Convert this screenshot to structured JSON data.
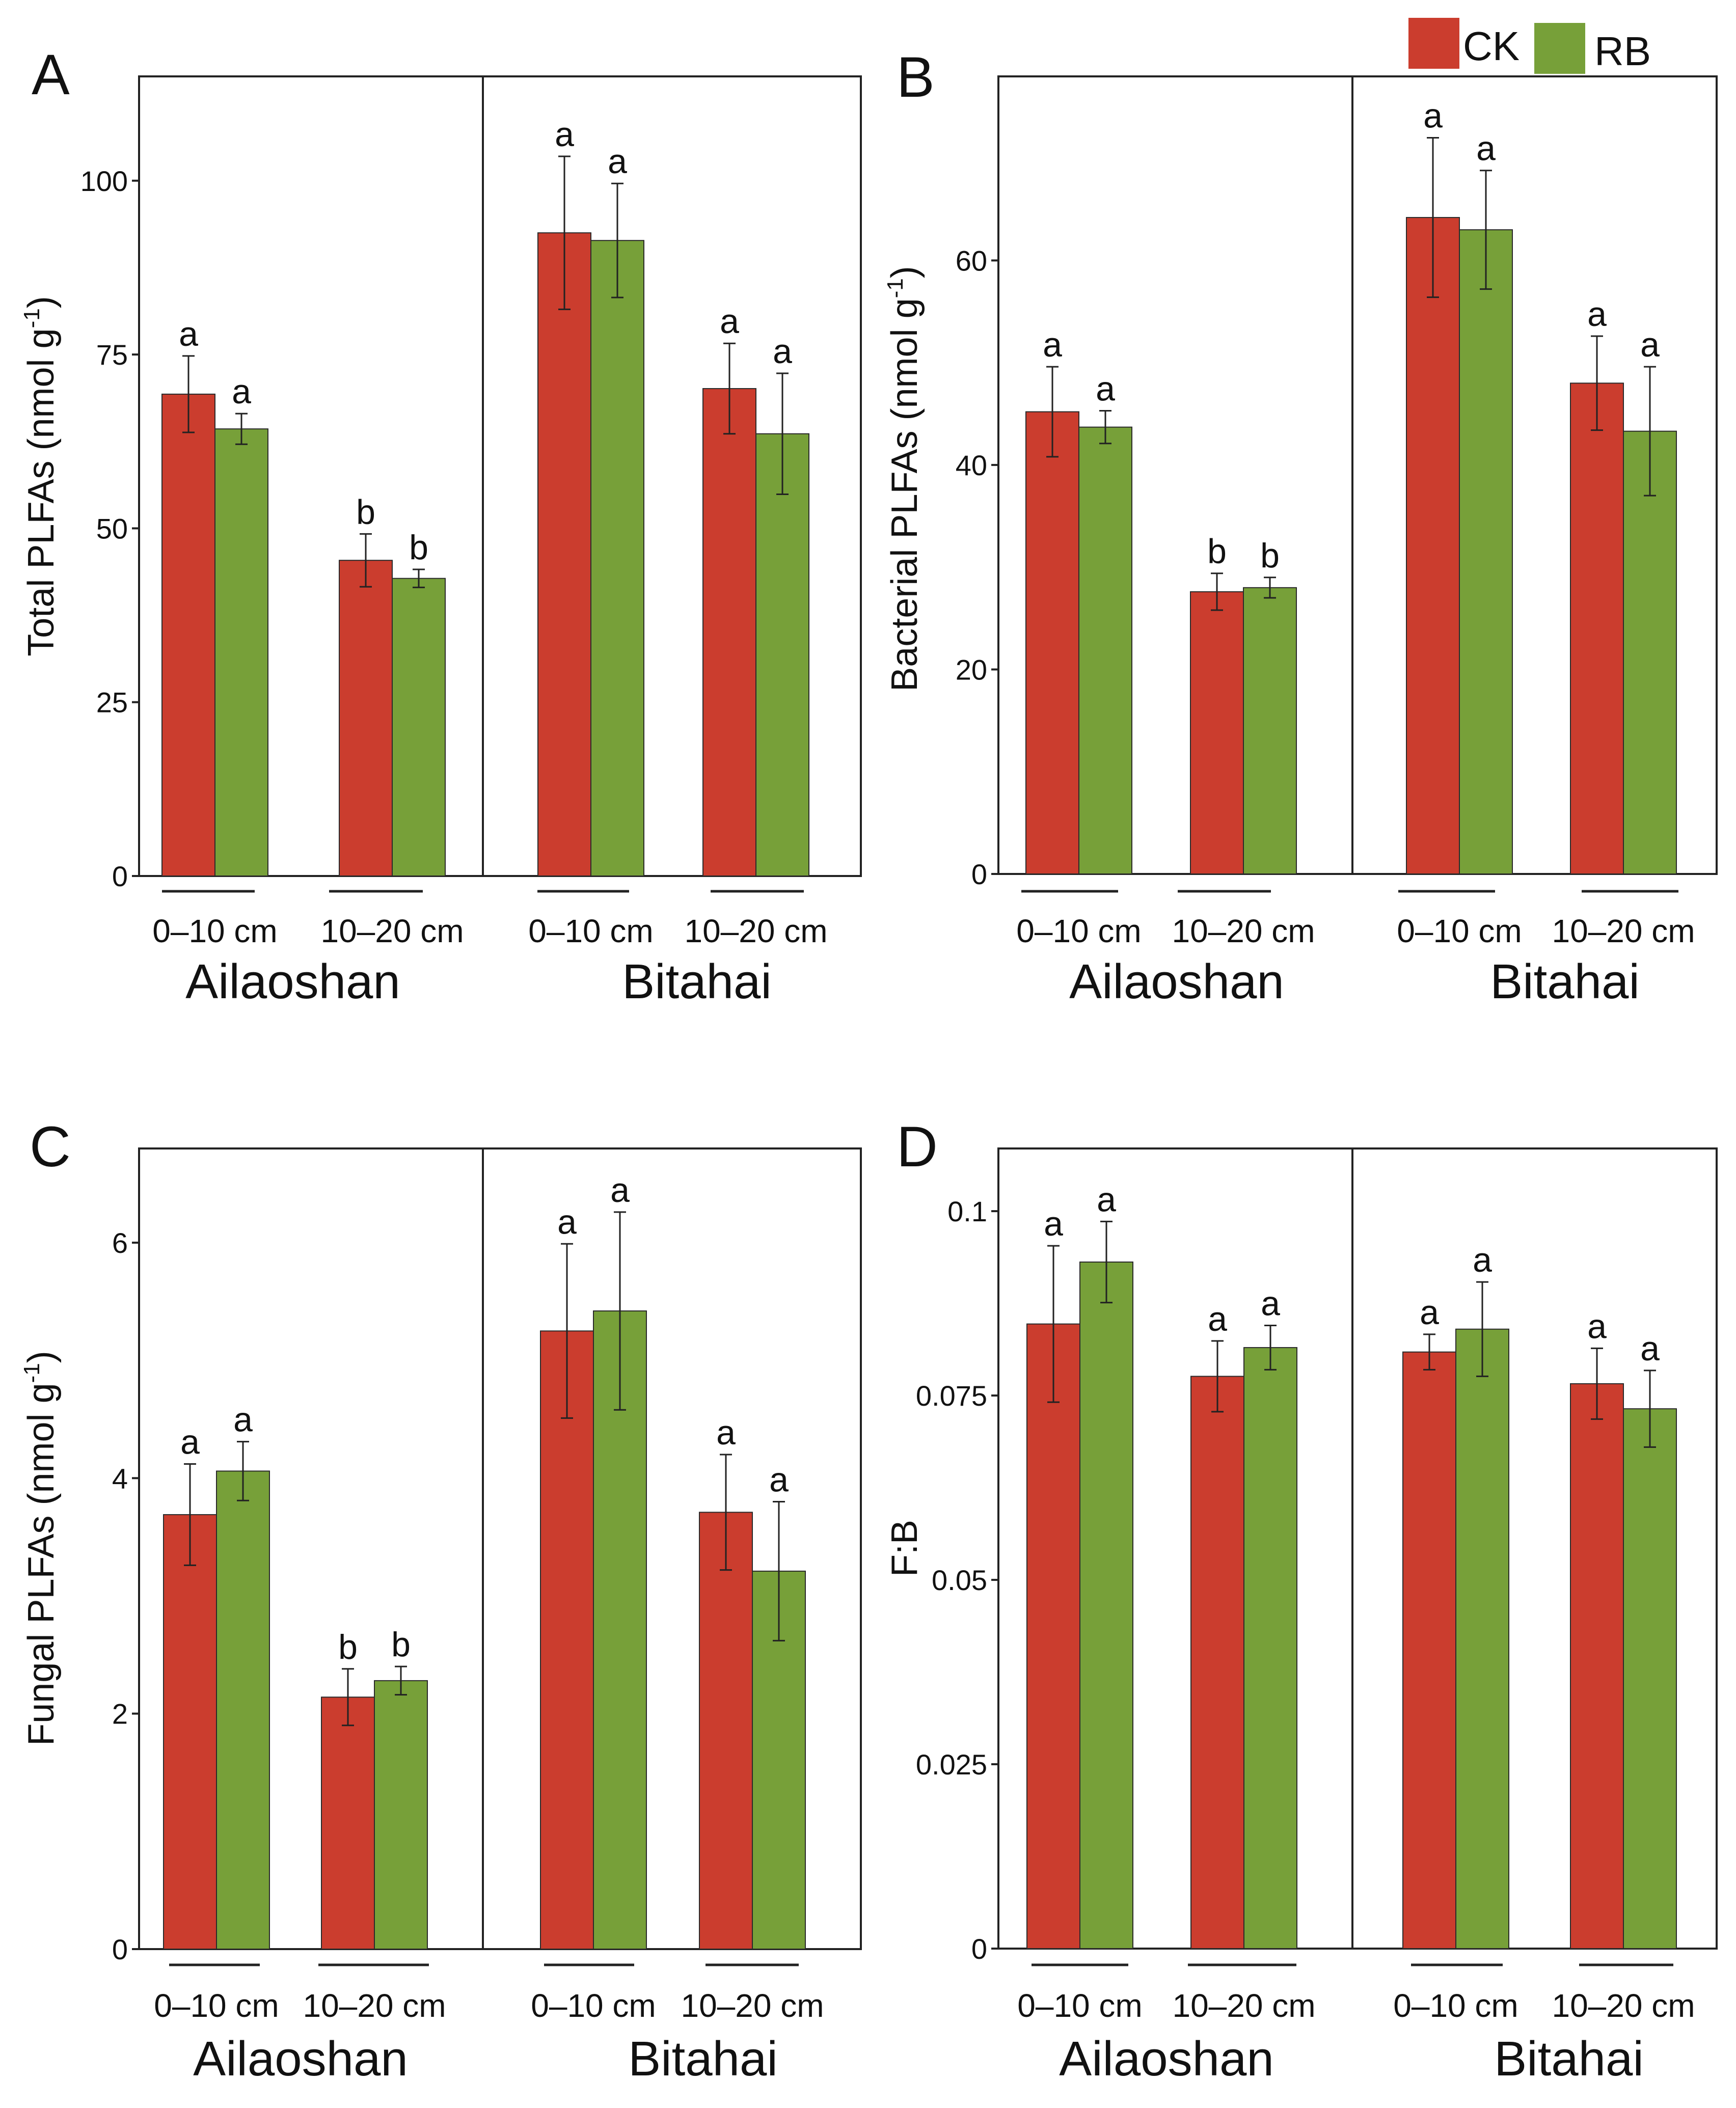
{
  "legend": {
    "items": [
      {
        "label": "CK",
        "color": "#cb3d2e"
      },
      {
        "label": "RB",
        "color": "#77a039"
      }
    ]
  },
  "chart_data": [
    {
      "type": "bar",
      "panel": "A",
      "ylabel": "Total  PLFAs  (nmol g-1)",
      "ylabel_main": "Total  PLFAs  (nmol g",
      "ylabel_sup": "-1",
      "ylabel_end": ")",
      "ylim": [
        0,
        115
      ],
      "yticks": [
        0,
        25,
        50,
        75,
        100
      ],
      "ytick_labels": [
        "0",
        "25",
        "50",
        "75",
        "100"
      ],
      "sites": [
        "Ailaoshan",
        "Bitahai"
      ],
      "depths": [
        "0–10 cm",
        "10–20 cm"
      ],
      "series": [
        {
          "name": "CK",
          "values": [
            69.3,
            45.4,
            92.5,
            70.1
          ],
          "errors": [
            5.5,
            3.8,
            11.0,
            6.5
          ],
          "letters": [
            "a",
            "b",
            "a",
            "a"
          ]
        },
        {
          "name": "RB",
          "values": [
            64.3,
            42.8,
            91.4,
            63.6
          ],
          "errors": [
            2.2,
            1.3,
            8.2,
            8.7
          ],
          "letters": [
            "a",
            "b",
            "a",
            "a"
          ]
        }
      ]
    },
    {
      "type": "bar",
      "panel": "B",
      "ylabel": "Bacterial  PLFAs  (nmol g-1)",
      "ylabel_main": "Bacterial  PLFAs  (nmol g",
      "ylabel_sup": "-1",
      "ylabel_end": ")",
      "ylim": [
        0,
        78
      ],
      "yticks": [
        0,
        20,
        40,
        60
      ],
      "ytick_labels": [
        "0",
        "20",
        "40",
        "60"
      ],
      "sites": [
        "Ailaoshan",
        "Bitahai"
      ],
      "depths": [
        "0–10 cm",
        "10–20 cm"
      ],
      "series": [
        {
          "name": "CK",
          "values": [
            45.2,
            27.6,
            64.2,
            48.0
          ],
          "errors": [
            4.4,
            1.8,
            7.8,
            4.6
          ],
          "letters": [
            "a",
            "b",
            "a",
            "a"
          ]
        },
        {
          "name": "RB",
          "values": [
            43.7,
            28.0,
            63.0,
            43.3
          ],
          "errors": [
            1.6,
            1.0,
            5.8,
            6.3
          ],
          "letters": [
            "a",
            "b",
            "a",
            "a"
          ]
        }
      ]
    },
    {
      "type": "bar",
      "panel": "C",
      "ylabel": "Fungal PLFAs  (nmol g-1)",
      "ylabel_main": "Fungal PLFAs  (nmol g",
      "ylabel_sup": "-1",
      "ylabel_end": ")",
      "ylim": [
        0,
        6.8
      ],
      "yticks": [
        0,
        2,
        4,
        6
      ],
      "ytick_labels": [
        "0",
        "2",
        "4",
        "6"
      ],
      "sites": [
        "Ailaoshan",
        "Bitahai"
      ],
      "depths": [
        "0–10 cm",
        "10–20 cm"
      ],
      "series": [
        {
          "name": "CK",
          "values": [
            3.69,
            2.14,
            5.25,
            3.71
          ],
          "errors": [
            0.43,
            0.24,
            0.74,
            0.49
          ],
          "letters": [
            "a",
            "b",
            "a",
            "a"
          ]
        },
        {
          "name": "RB",
          "values": [
            4.06,
            2.28,
            5.42,
            3.21
          ],
          "errors": [
            0.25,
            0.12,
            0.84,
            0.59
          ],
          "letters": [
            "a",
            "b",
            "a",
            "a"
          ]
        }
      ]
    },
    {
      "type": "bar",
      "panel": "D",
      "ylabel": "F:B",
      "ylabel_main": "F:B",
      "ylabel_sup": "",
      "ylabel_end": "",
      "ylim": [
        0,
        0.1085
      ],
      "yticks": [
        0,
        0.025,
        0.05,
        0.075,
        0.1
      ],
      "ytick_labels": [
        "0",
        "0.025",
        "0.05",
        "0.075",
        "0.1"
      ],
      "sites": [
        "Ailaoshan",
        "Bitahai"
      ],
      "depths": [
        "0–10 cm",
        "10–20 cm"
      ],
      "series": [
        {
          "name": "CK",
          "values": [
            0.0847,
            0.0776,
            0.0809,
            0.0766
          ],
          "errors": [
            0.0106,
            0.0048,
            0.0024,
            0.0048
          ],
          "letters": [
            "a",
            "a",
            "a",
            "a"
          ]
        },
        {
          "name": "RB",
          "values": [
            0.0931,
            0.0815,
            0.084,
            0.0732
          ],
          "errors": [
            0.0055,
            0.003,
            0.0064,
            0.0052
          ],
          "letters": [
            "a",
            "a",
            "a",
            "a"
          ]
        }
      ]
    }
  ]
}
